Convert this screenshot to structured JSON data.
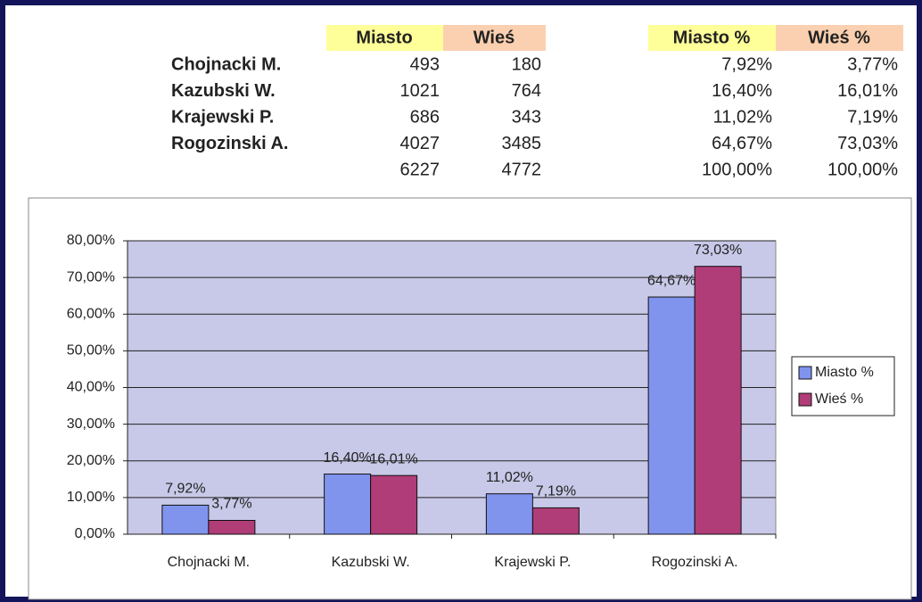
{
  "table": {
    "headers": [
      "Miasto",
      "Wieś",
      "Miasto %",
      "Wieś %"
    ],
    "rows": [
      [
        "Chojnacki M.",
        "493",
        "180",
        "7,92%",
        "3,77%"
      ],
      [
        "Kazubski W.",
        "1021",
        "764",
        "16,40%",
        "16,01%"
      ],
      [
        "Krajewski P.",
        "686",
        "343",
        "11,02%",
        "7,19%"
      ],
      [
        "Rogozinski A.",
        "4027",
        "3485",
        "64,67%",
        "73,03%"
      ],
      [
        null,
        "6227",
        "4772",
        "100,00%",
        "100,00%"
      ]
    ]
  },
  "chart_data": {
    "type": "bar",
    "categories": [
      "Chojnacki M.",
      "Kazubski W.",
      "Krajewski P.",
      "Rogozinski A."
    ],
    "series": [
      {
        "name": "Miasto %",
        "color": "#8094ee",
        "values": [
          7.92,
          16.4,
          11.02,
          64.67
        ],
        "value_labels": [
          "7,92%",
          "16,40%",
          "11,02%",
          "64,67%"
        ]
      },
      {
        "name": "Wieś %",
        "color": "#b03c78",
        "values": [
          3.77,
          16.01,
          7.19,
          73.03
        ],
        "value_labels": [
          "3,77%",
          "16,01%",
          "7,19%",
          "73,03%"
        ]
      }
    ],
    "ylim": [
      0,
      80
    ],
    "yticks": [
      {
        "value": 0,
        "label": "0,00%"
      },
      {
        "value": 10,
        "label": "10,00%"
      },
      {
        "value": 20,
        "label": "20,00%"
      },
      {
        "value": 30,
        "label": "30,00%"
      },
      {
        "value": 40,
        "label": "40,00%"
      },
      {
        "value": 50,
        "label": "50,00%"
      },
      {
        "value": 60,
        "label": "60,00%"
      },
      {
        "value": 70,
        "label": "70,00%"
      },
      {
        "value": 80,
        "label": "80,00%"
      }
    ],
    "grid": true,
    "legend": "right",
    "plot_background": "#c8c8e8"
  }
}
